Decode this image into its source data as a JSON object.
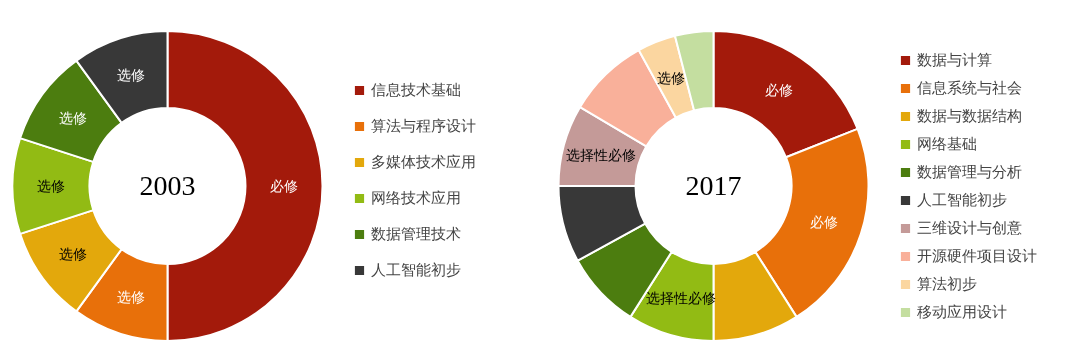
{
  "chart_data": [
    {
      "type": "donut",
      "title": "2003",
      "legend": "right",
      "categories": [
        "信息技术基础",
        "算法与程序设计",
        "多媒体技术应用",
        "网络技术应用",
        "数据管理技术",
        "人工智能初步"
      ],
      "values": [
        50,
        10,
        10,
        10,
        10,
        10
      ],
      "colors": [
        "#a31a0b",
        "#e8700a",
        "#e3a80c",
        "#92bb14",
        "#4c7d0f",
        "#383838"
      ],
      "value_labels": [
        "必修",
        "选修",
        "选修",
        "选修",
        "选修",
        "选修"
      ]
    },
    {
      "type": "donut",
      "title": "2017",
      "legend": "right",
      "categories": [
        "数据与计算",
        "信息系统与社会",
        "数据与数据结构",
        "网络基础",
        "数据管理与分析",
        "人工智能初步",
        "三维设计与创意",
        "开源硬件项目设计",
        "算法初步",
        "移动应用设计"
      ],
      "values": [
        19,
        22,
        9,
        9,
        8,
        8,
        8.5,
        8.5,
        4,
        4
      ],
      "colors": [
        "#a31a0b",
        "#e8700a",
        "#e3a80c",
        "#92bb14",
        "#4c7d0f",
        "#383838",
        "#c49a98",
        "#f9b09a",
        "#fbd6a0",
        "#c4dea0"
      ],
      "value_labels": [
        "必修",
        "必修",
        null,
        "选择性必修",
        null,
        null,
        "选择性必修",
        null,
        "选修",
        null
      ]
    }
  ]
}
